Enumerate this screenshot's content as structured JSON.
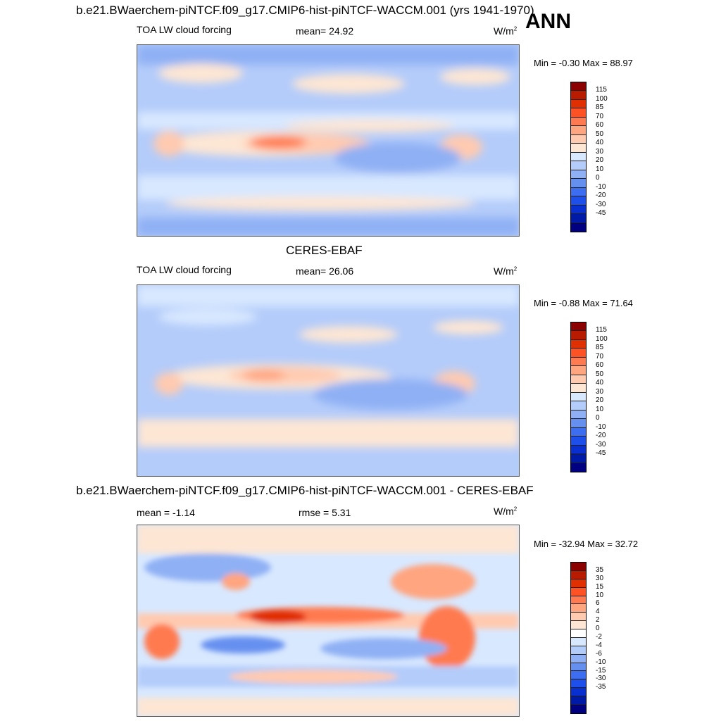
{
  "season": "ANN",
  "panels": [
    {
      "title": "b.e21.BWaerchem-piNTCF.f09_g17.CMIP6-hist-piNTCF-WACCM.001 (yrs 1941-1970)",
      "variable": "TOA LW cloud forcing",
      "stat1": "mean=  24.92",
      "stat2": "",
      "units": "W/m",
      "units_sup": "2",
      "minmax": "Min =  -0.30 Max =  88.97",
      "colors": [
        "#8b0000",
        "#b81b00",
        "#e02f00",
        "#ff5224",
        "#ff7a50",
        "#ffa580",
        "#ffcab0",
        "#fde6d4",
        "#d8e8ff",
        "#b4ccfa",
        "#8fb0f4",
        "#6690f0",
        "#3d6ef2",
        "#1f4fea",
        "#0a2fd0",
        "#001aa8",
        "#000080"
      ],
      "ticks": [
        "115",
        "100",
        "85",
        "70",
        "60",
        "50",
        "40",
        "30",
        "20",
        "10",
        "0",
        "-10",
        "-20",
        "-30",
        "-45"
      ]
    },
    {
      "title": "CERES-EBAF",
      "variable": "TOA LW cloud forcing",
      "stat1": "mean=  26.06",
      "stat2": "",
      "units": "W/m",
      "units_sup": "2",
      "minmax": "Min =  -0.88 Max =  71.64",
      "colors": [
        "#8b0000",
        "#b81b00",
        "#e02f00",
        "#ff5224",
        "#ff7a50",
        "#ffa580",
        "#ffcab0",
        "#fde6d4",
        "#d8e8ff",
        "#b4ccfa",
        "#8fb0f4",
        "#6690f0",
        "#3d6ef2",
        "#1f4fea",
        "#0a2fd0",
        "#001aa8",
        "#000080"
      ],
      "ticks": [
        "115",
        "100",
        "85",
        "70",
        "60",
        "50",
        "40",
        "30",
        "20",
        "10",
        "0",
        "-10",
        "-20",
        "-30",
        "-45"
      ]
    },
    {
      "title": "b.e21.BWaerchem-piNTCF.f09_g17.CMIP6-hist-piNTCF-WACCM.001 - CERES-EBAF",
      "variable": "",
      "stat1": "mean =  -1.14",
      "stat2": "rmse =   5.31",
      "units": "W/m",
      "units_sup": "2",
      "minmax": "Min = -32.94 Max =  32.72",
      "colors": [
        "#8b0000",
        "#b81b00",
        "#e02f00",
        "#ff5224",
        "#ff7a50",
        "#ffa580",
        "#ffcab0",
        "#fde6d4",
        "#ffffff",
        "#d8e8ff",
        "#b4ccfa",
        "#8fb0f4",
        "#6690f0",
        "#3d6ef2",
        "#1f4fea",
        "#0a2fd0",
        "#001aa8",
        "#000080"
      ],
      "ticks": [
        "35",
        "30",
        "15",
        "10",
        "6",
        "4",
        "2",
        "0",
        "-2",
        "-4",
        "-6",
        "-10",
        "-15",
        "-30",
        "-35"
      ]
    }
  ]
}
